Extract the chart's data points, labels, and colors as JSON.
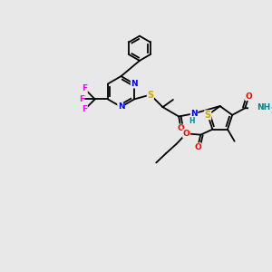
{
  "background_color": "#e8e8e8",
  "bond_color": "#000000",
  "colors": {
    "N": "#0000ff",
    "S": "#ccaa00",
    "O": "#ff0000",
    "F": "#ff00ff",
    "H_amide": "#008888",
    "C": "#000000"
  }
}
